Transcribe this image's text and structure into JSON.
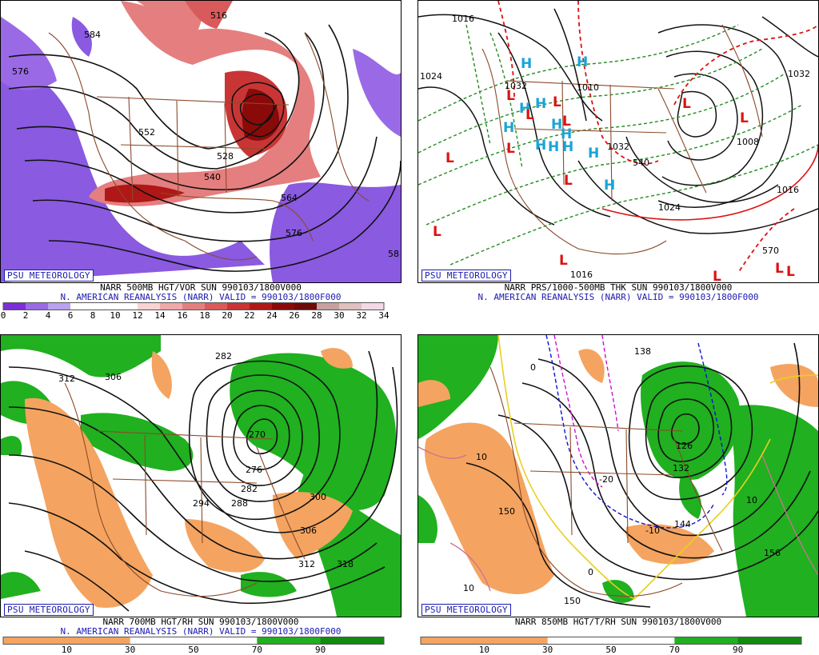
{
  "panels": [
    {
      "badge": "PSU METEOROLOGY",
      "title": "NARR 500MB HGT/VOR SUN 990103/1800V000",
      "subtitle": "N. AMERICAN REANALYSIS (NARR) VALID = 990103/1800F000",
      "colorbar": {
        "colors": [
          "#7b2fd6",
          "#9a6ae6",
          "#b8a3f0",
          "#ffffff",
          "#ffffff",
          "#ffffff",
          "#f7d3d3",
          "#f0a8a8",
          "#e57f7f",
          "#d95a5a",
          "#c93535",
          "#b01818",
          "#8a0a0a",
          "#6e0a0a",
          "#c8a0a0",
          "#e0c0c0",
          "#f3d8e6"
        ],
        "ticks": [
          "0",
          "2",
          "4",
          "6",
          "8",
          "10",
          "12",
          "14",
          "16",
          "18",
          "20",
          "22",
          "24",
          "26",
          "28",
          "30",
          "32",
          "34"
        ]
      },
      "contour_labels": [
        "516",
        "584",
        "576",
        "552",
        "528",
        "540",
        "564",
        "576",
        "58"
      ]
    },
    {
      "badge": "PSU METEOROLOGY",
      "title": "NARR PRS/1000-500MB THK SUN 990103/1800V000",
      "subtitle": "N. AMERICAN REANALYSIS (NARR) VALID = 990103/1800F000",
      "contour_labels": [
        "1016",
        "1024",
        "1032",
        "1010",
        "1032",
        "1024",
        "1016",
        "1032",
        "540",
        "570",
        "1016",
        "1008"
      ]
    },
    {
      "badge": "PSU METEOROLOGY",
      "title": "NARR 700MB HGT/RH SUN 990103/1800V000",
      "subtitle": "N. AMERICAN REANALYSIS (NARR) VALID = 990103/1800F000",
      "colorbar": {
        "colors": [
          "#f4a460",
          "#f4a460",
          "#ffffff",
          "#ffffff",
          "#20b020",
          "#118a11"
        ],
        "ticks": [
          "10",
          "30",
          "50",
          "70",
          "90"
        ]
      },
      "contour_labels": [
        "282",
        "312",
        "306",
        "270",
        "276",
        "282",
        "288",
        "294",
        "300",
        "306",
        "312",
        "318"
      ]
    },
    {
      "badge": "PSU METEOROLOGY",
      "title": "NARR 850MB HGT/T/RH SUN 990103/1800V000",
      "subtitle": "",
      "colorbar": {
        "colors": [
          "#f4a460",
          "#f4a460",
          "#ffffff",
          "#ffffff",
          "#20b020",
          "#118a11"
        ],
        "ticks": [
          "10",
          "30",
          "50",
          "70",
          "90"
        ]
      },
      "contour_labels": [
        "138",
        "0",
        "10",
        "-20",
        "126",
        "132",
        "144",
        "150",
        "156",
        "150",
        "10",
        "0",
        "-10",
        "10"
      ]
    }
  ]
}
